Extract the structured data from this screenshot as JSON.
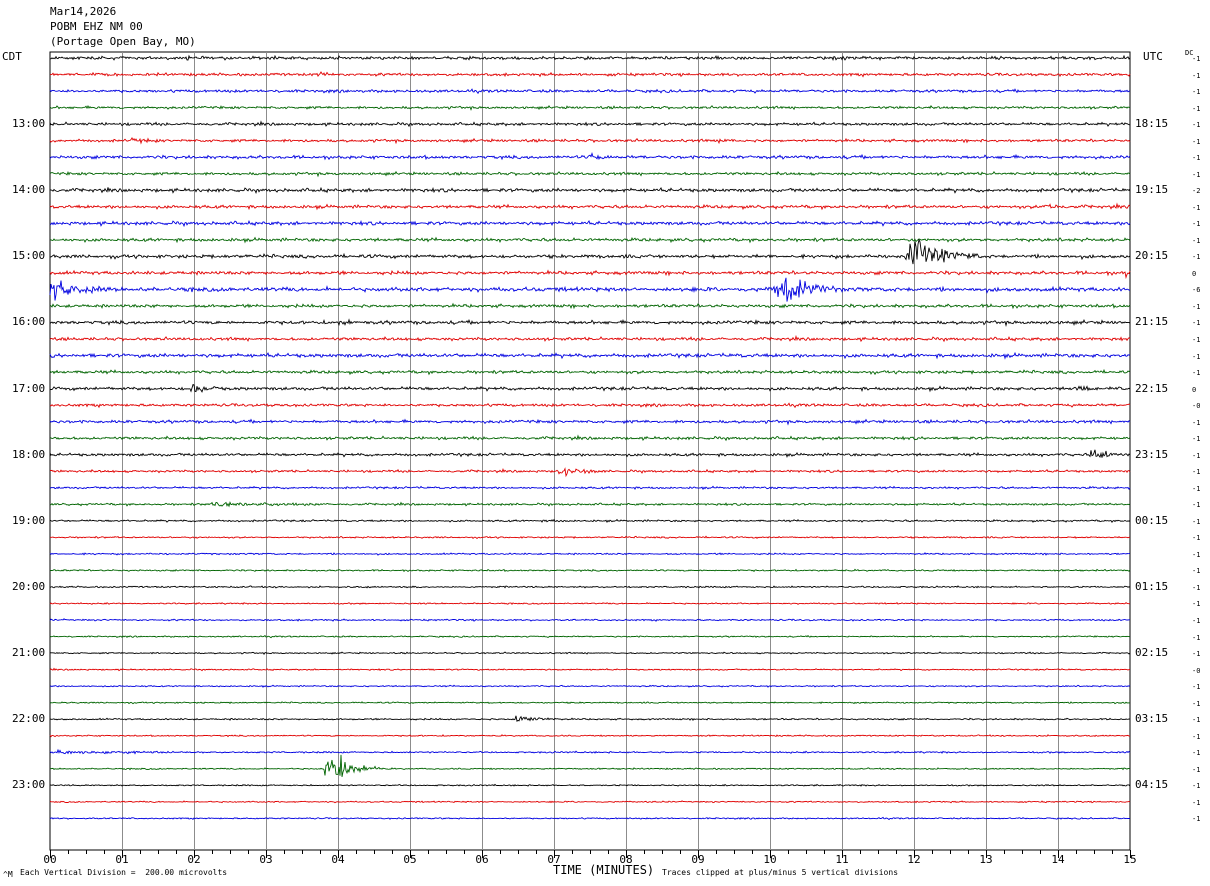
{
  "header": {
    "date": "Mar14,2026",
    "station": "POBM EHZ NM 00",
    "location": "(Portage Open Bay, MO)"
  },
  "left_zone": "CDT",
  "right_zone": "UTC",
  "dc_label": "DC",
  "footer": {
    "scale_note": "Each Vertical Division =  200.00 microvolts",
    "clip_note": "Traces clipped at plus/minus 5 vertical divisions",
    "corner_mark": "^M"
  },
  "chart_data": {
    "type": "line",
    "title": "",
    "xlabel": "TIME (MINUTES)",
    "xlim": [
      0,
      15
    ],
    "x_ticks": [
      "00",
      "01",
      "02",
      "03",
      "04",
      "05",
      "06",
      "07",
      "08",
      "09",
      "10",
      "11",
      "12",
      "13",
      "14",
      "15"
    ],
    "grid": true,
    "trace_colors": [
      "#000000",
      "#e00000",
      "#0000e0",
      "#006400"
    ],
    "left_hour_labels": [
      "13:00",
      "14:00",
      "15:00",
      "16:00",
      "17:00",
      "18:00",
      "19:00",
      "20:00",
      "21:00",
      "22:00",
      "23:00"
    ],
    "right_hour_labels": [
      "18:15",
      "19:15",
      "20:15",
      "21:15",
      "22:15",
      "23:15",
      "00:15",
      "01:15",
      "02:15",
      "03:15",
      "04:15"
    ],
    "dc_offsets": [
      "-1",
      "-1",
      "-1",
      "-1",
      "-1",
      "-1",
      "-1",
      "-1",
      "-2",
      "-1",
      "-1",
      "-1",
      "-1",
      "0",
      "-6",
      "-1",
      "-1",
      "-1",
      "-1",
      "-1",
      "0",
      "-0",
      "-1",
      "-1",
      "-1",
      "-1",
      "-1",
      "-1",
      "-1",
      "-1",
      "-1",
      "-1",
      "-1",
      "-1",
      "-1",
      "-1",
      "-1",
      "-0",
      "-1",
      "-1",
      "-1",
      "-1",
      "-1",
      "-1",
      "-1",
      "-1",
      "-1"
    ],
    "row_noise": [
      1.3,
      1.2,
      1.2,
      1.1,
      1.2,
      1.2,
      1.4,
      1.2,
      1.5,
      1.4,
      1.5,
      1.4,
      1.5,
      1.5,
      1.8,
      1.4,
      1.5,
      1.3,
      1.6,
      1.3,
      1.4,
      1.2,
      1.3,
      1.2,
      1.2,
      1.0,
      0.9,
      0.9,
      0.8,
      0.7,
      0.7,
      0.7,
      0.7,
      0.6,
      0.7,
      0.6,
      0.6,
      0.6,
      0.6,
      0.6,
      0.7,
      0.6,
      0.7,
      0.6,
      0.6,
      0.6,
      0.6
    ],
    "events": [
      {
        "row": 0,
        "minute": 1.9,
        "dur": 0.3,
        "amp": 2
      },
      {
        "row": 1,
        "minute": 3.7,
        "dur": 0.25,
        "amp": 2.5
      },
      {
        "row": 5,
        "minute": 1.1,
        "dur": 0.4,
        "amp": 2.5
      },
      {
        "row": 5,
        "minute": 9.3,
        "dur": 0.3,
        "amp": 2.5
      },
      {
        "row": 6,
        "minute": 7.5,
        "dur": 0.3,
        "amp": 3
      },
      {
        "row": 9,
        "minute": 13.8,
        "dur": 0.2,
        "amp": 3
      },
      {
        "row": 12,
        "minute": 11.9,
        "dur": 1.0,
        "amp": 22
      },
      {
        "row": 13,
        "minute": 14.9,
        "dur": 0.1,
        "amp": 12
      },
      {
        "row": 14,
        "minute": 0.0,
        "dur": 0.7,
        "amp": 15
      },
      {
        "row": 14,
        "minute": 10.05,
        "dur": 0.95,
        "amp": 18
      },
      {
        "row": 16,
        "minute": 4.0,
        "dur": 0.3,
        "amp": 4
      },
      {
        "row": 20,
        "minute": 1.95,
        "dur": 0.4,
        "amp": 6
      },
      {
        "row": 20,
        "minute": 14.25,
        "dur": 0.35,
        "amp": 4
      },
      {
        "row": 24,
        "minute": 14.45,
        "dur": 0.4,
        "amp": 8
      },
      {
        "row": 25,
        "minute": 7.05,
        "dur": 0.6,
        "amp": 5
      },
      {
        "row": 27,
        "minute": 2.2,
        "dur": 1.6,
        "amp": 2
      },
      {
        "row": 28,
        "minute": 6.9,
        "dur": 0.2,
        "amp": 2.5
      },
      {
        "row": 40,
        "minute": 6.45,
        "dur": 0.6,
        "amp": 5
      },
      {
        "row": 42,
        "minute": 0.0,
        "dur": 2.0,
        "amp": 2
      },
      {
        "row": 43,
        "minute": 3.8,
        "dur": 0.8,
        "amp": 22
      }
    ],
    "clip_divisions": 5,
    "scale_microvolts_per_division": 200.0
  }
}
